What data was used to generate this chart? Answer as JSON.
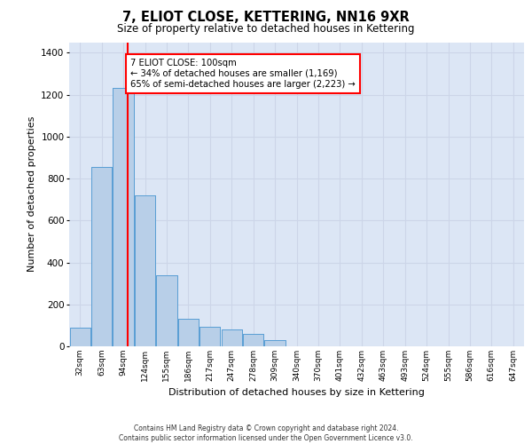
{
  "title": "7, ELIOT CLOSE, KETTERING, NN16 9XR",
  "subtitle": "Size of property relative to detached houses in Kettering",
  "xlabel": "Distribution of detached houses by size in Kettering",
  "ylabel": "Number of detached properties",
  "categories": [
    "32sqm",
    "63sqm",
    "94sqm",
    "124sqm",
    "155sqm",
    "186sqm",
    "217sqm",
    "247sqm",
    "278sqm",
    "309sqm",
    "340sqm",
    "370sqm",
    "401sqm",
    "432sqm",
    "463sqm",
    "493sqm",
    "524sqm",
    "555sqm",
    "586sqm",
    "616sqm",
    "647sqm"
  ],
  "values": [
    90,
    855,
    1230,
    720,
    340,
    130,
    95,
    80,
    60,
    30,
    0,
    0,
    0,
    0,
    0,
    0,
    0,
    0,
    0,
    0,
    0
  ],
  "bar_color": "#b8cfe8",
  "bar_edge_color": "#5a9fd4",
  "grid_color": "#ccd5e8",
  "background_color": "#dce6f5",
  "annotation_box_text": "7 ELIOT CLOSE: 100sqm\n← 34% of detached houses are smaller (1,169)\n65% of semi-detached houses are larger (2,223) →",
  "annotation_box_color": "white",
  "annotation_box_edge_color": "red",
  "vline_color": "red",
  "ylim": [
    0,
    1450
  ],
  "yticks": [
    0,
    200,
    400,
    600,
    800,
    1000,
    1200,
    1400
  ],
  "footer_line1": "Contains HM Land Registry data © Crown copyright and database right 2024.",
  "footer_line2": "Contains public sector information licensed under the Open Government Licence v3.0."
}
